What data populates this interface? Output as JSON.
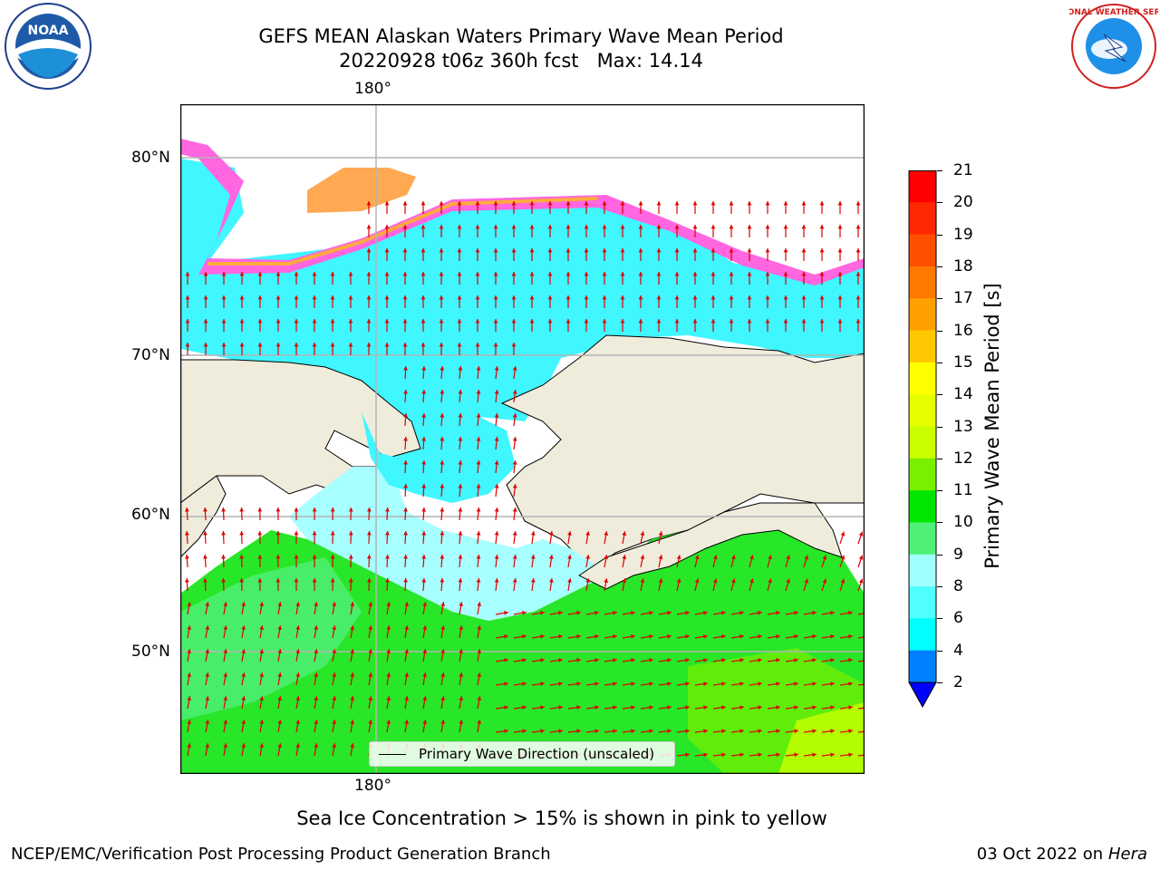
{
  "title_line1": "GEFS MEAN Alaskan Waters Primary Wave Mean Period",
  "title_line2": "20220928 t06z 360h fcst   Max: 14.14",
  "top_lon_label": "180°",
  "bottom_lon_label": "180°",
  "lat_labels": [
    "80°N",
    "70°N",
    "60°N",
    "50°N"
  ],
  "legend_label": "Primary Wave Direction (unscaled)",
  "colorbar": {
    "label": "Primary Wave Mean Period [s]",
    "ticks": [
      "21",
      "20",
      "19",
      "18",
      "17",
      "16",
      "15",
      "14",
      "13",
      "12",
      "11",
      "10",
      "9",
      "8",
      "6",
      "4",
      "2"
    ],
    "colors": [
      "#ff0000",
      "#ff2800",
      "#ff5000",
      "#ff7800",
      "#ffa000",
      "#ffc800",
      "#ffff00",
      "#e6ff00",
      "#c8ff00",
      "#78f000",
      "#00e600",
      "#50f078",
      "#a0ffff",
      "#50ffff",
      "#00ffff",
      "#0080ff",
      "#0000ff"
    ]
  },
  "sea_ice_note": "Sea Ice Concentration > 15% is shown in pink to yellow",
  "footer_left": "NCEP/EMC/Verification Post Processing Product Generation Branch",
  "footer_right_date": "03 Oct 2022 on ",
  "footer_right_machine": "Hera",
  "logos": {
    "left": "NOAA",
    "right": "NATIONAL WEATHER SERVICE"
  }
}
